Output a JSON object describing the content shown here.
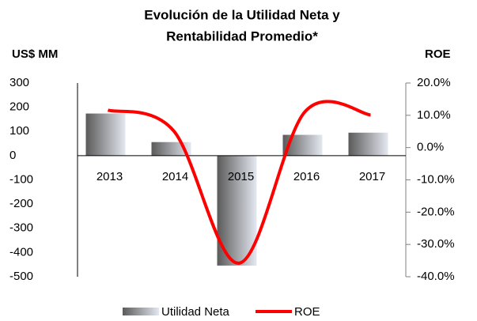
{
  "chart_data": {
    "type": "bar_line",
    "title_lines": [
      "Evolución de la Utilidad Neta  y",
      "Rentabilidad Promedio*"
    ],
    "y_label": "US$ MM",
    "y2_label": "ROE",
    "categories": [
      "2013",
      "2014",
      "2015",
      "2016",
      "2017"
    ],
    "series": [
      {
        "name": "Utilidad Neta",
        "color": "#808080",
        "values": [
          174,
          56,
          -454,
          86,
          95
        ]
      },
      {
        "name": "ROE",
        "color": "#ff0000",
        "axis": "y2",
        "values": [
          11.6,
          5.2,
          -35.8,
          11.1,
          10.1
        ]
      }
    ],
    "ylim": [
      -500,
      300
    ],
    "yticks": [
      -500,
      -400,
      -300,
      -200,
      -100,
      0,
      100,
      200,
      300
    ],
    "y2lim": [
      -40,
      20
    ],
    "y2ticks": [
      {
        "value": -40,
        "label": "-40.0%"
      },
      {
        "value": -30,
        "label": "-30.0%"
      },
      {
        "value": -20,
        "label": "-20.0%"
      },
      {
        "value": -10,
        "label": "-10.0%"
      },
      {
        "value": 0,
        "label": "0.0%"
      },
      {
        "value": 10,
        "label": "10.0%"
      },
      {
        "value": 20,
        "label": "20.0%"
      }
    ],
    "legend": "bottom"
  }
}
